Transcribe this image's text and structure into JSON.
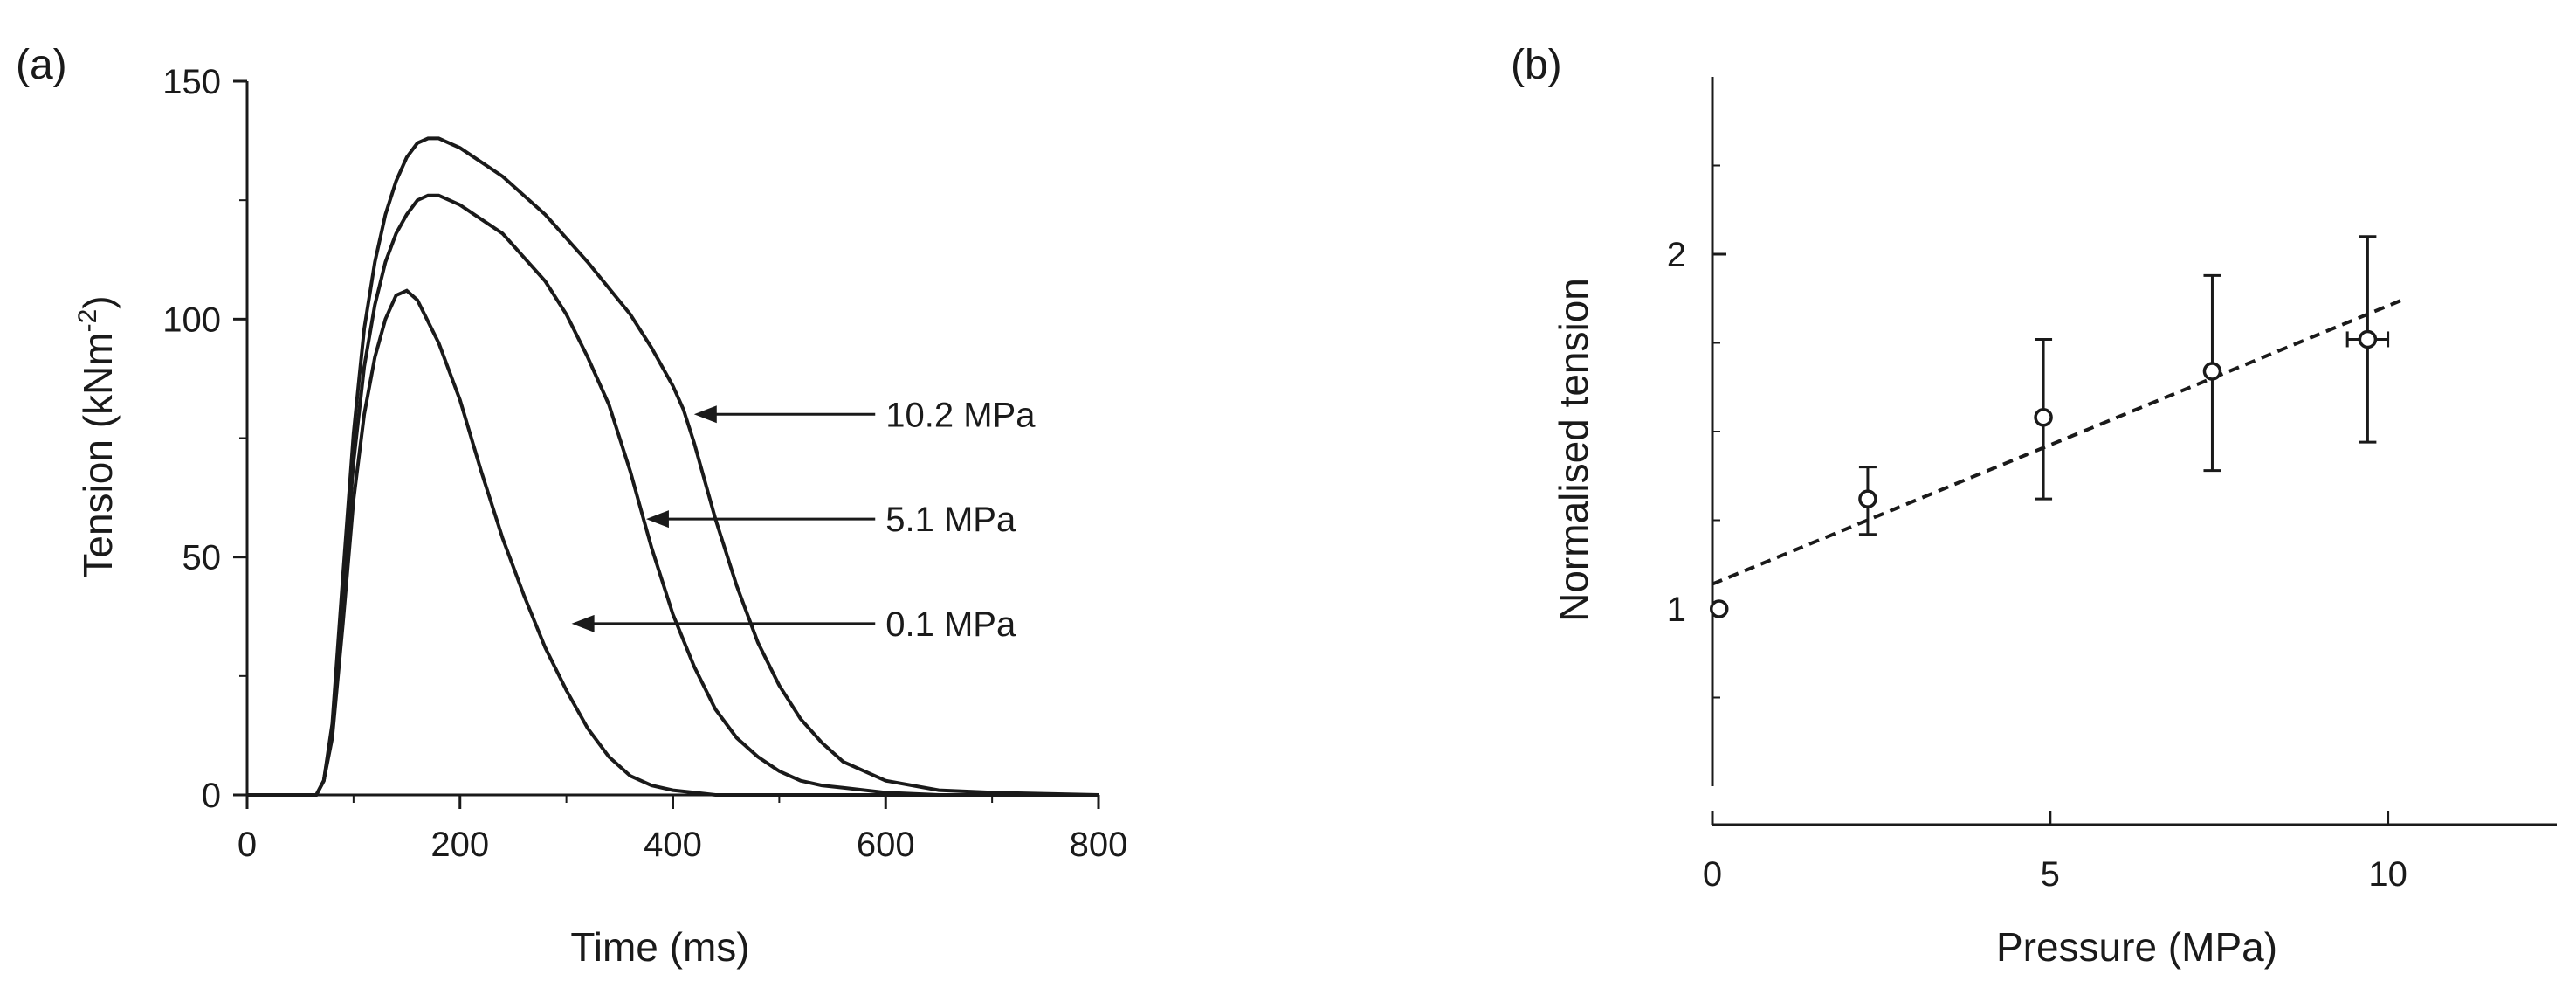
{
  "chart_data": [
    {
      "panel_label": "(a)",
      "type": "line",
      "xlabel": "Time (ms)",
      "ylabel": "Tension (kNm",
      "ylabel_sup": "-2",
      "ylabel_close": ")",
      "xlim": [
        0,
        800
      ],
      "ylim": [
        0,
        150
      ],
      "xticks": [
        0,
        200,
        400,
        600,
        800
      ],
      "xtick_labels": [
        "0",
        "200",
        "400",
        "600",
        "800"
      ],
      "yticks": [
        0,
        50,
        100,
        150
      ],
      "ytick_labels": [
        "0",
        "50",
        "100",
        "150"
      ],
      "series": [
        {
          "name": "0.1 MPa",
          "x": [
            0,
            65,
            72,
            80,
            90,
            100,
            110,
            120,
            130,
            140,
            150,
            160,
            180,
            200,
            220,
            240,
            260,
            280,
            300,
            320,
            340,
            360,
            380,
            400,
            420,
            440,
            500,
            800
          ],
          "y": [
            0,
            0,
            3,
            12,
            36,
            62,
            80,
            92,
            100,
            105,
            106,
            104,
            95,
            83,
            68,
            54,
            42,
            31,
            22,
            14,
            8,
            4,
            2,
            1,
            0.5,
            0,
            0,
            0
          ]
        },
        {
          "name": "5.1 MPa",
          "x": [
            0,
            65,
            72,
            80,
            90,
            100,
            110,
            120,
            130,
            140,
            150,
            160,
            170,
            180,
            200,
            240,
            280,
            300,
            320,
            340,
            360,
            370,
            380,
            400,
            420,
            440,
            460,
            480,
            500,
            520,
            540,
            560,
            600,
            650,
            700,
            800
          ],
          "y": [
            0,
            0,
            3,
            14,
            42,
            70,
            90,
            103,
            112,
            118,
            122,
            125,
            126,
            126,
            124,
            118,
            108,
            101,
            92,
            82,
            68,
            60,
            52,
            38,
            27,
            18,
            12,
            8,
            5,
            3,
            2,
            1.5,
            0.5,
            0,
            0,
            0
          ]
        },
        {
          "name": "10.2 MPa",
          "x": [
            0,
            65,
            72,
            80,
            90,
            100,
            110,
            120,
            130,
            140,
            150,
            160,
            170,
            180,
            200,
            240,
            280,
            320,
            360,
            380,
            400,
            410,
            420,
            440,
            460,
            480,
            500,
            520,
            540,
            560,
            580,
            600,
            650,
            700,
            800
          ],
          "y": [
            0,
            0,
            3,
            15,
            46,
            76,
            98,
            112,
            122,
            129,
            134,
            137,
            138,
            138,
            136,
            130,
            122,
            112,
            101,
            94,
            86,
            81,
            74,
            58,
            44,
            32,
            23,
            16,
            11,
            7,
            5,
            3,
            1,
            0.5,
            0
          ]
        }
      ],
      "annotations": [
        {
          "text": "10.2 MPa",
          "target_x": 415,
          "target_y": 80,
          "label_x": 600,
          "label_y": 80
        },
        {
          "text": "5.1 MPa",
          "target_x": 370,
          "target_y": 58,
          "label_x": 600,
          "label_y": 58
        },
        {
          "text": "0.1 MPa",
          "target_x": 300,
          "target_y": 36,
          "label_x": 600,
          "label_y": 36
        }
      ]
    },
    {
      "panel_label": "(b)",
      "type": "scatter",
      "xlabel": "Pressure (MPa)",
      "ylabel": "Normalised tension",
      "xlim": [
        0,
        12.5
      ],
      "ylim": [
        0.5,
        2.5
      ],
      "xticks": [
        0,
        5,
        10
      ],
      "xtick_labels": [
        "0",
        "5",
        "10"
      ],
      "yticks": [
        1,
        2
      ],
      "ytick_labels": [
        "1",
        "2"
      ],
      "points": [
        {
          "x": 0.1,
          "y": 1.0,
          "ylow": 1.0,
          "yhigh": 1.0
        },
        {
          "x": 2.3,
          "y": 1.31,
          "ylow": 1.21,
          "yhigh": 1.4
        },
        {
          "x": 4.9,
          "y": 1.54,
          "ylow": 1.31,
          "yhigh": 1.76
        },
        {
          "x": 7.4,
          "y": 1.67,
          "ylow": 1.39,
          "yhigh": 1.94
        },
        {
          "x": 9.7,
          "y": 1.76,
          "ylow": 1.47,
          "yhigh": 2.05,
          "xlow": 9.4,
          "xhigh": 10.0
        }
      ],
      "fit": {
        "style": "dashed",
        "x": [
          0,
          10.2
        ],
        "y": [
          1.07,
          1.87
        ]
      }
    }
  ]
}
